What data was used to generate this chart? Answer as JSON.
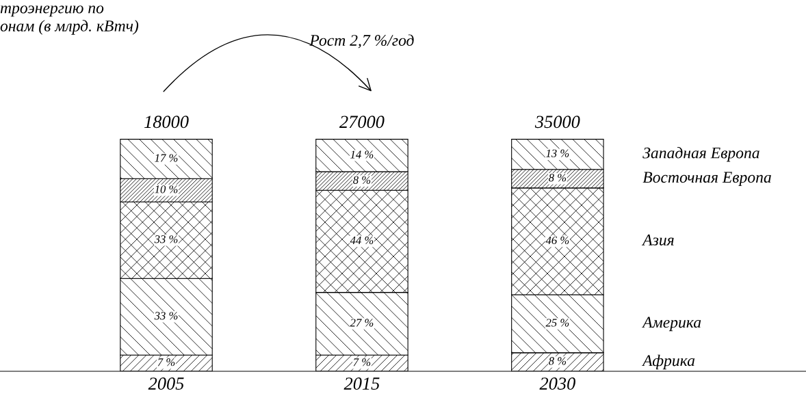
{
  "chart_data": {
    "type": "bar",
    "title": "троэнергию по\nонам (в млрд. кВтч)",
    "categories": [
      "2005",
      "2015",
      "2030"
    ],
    "stacked": true,
    "series": [
      {
        "name": "Африка",
        "color": "#000000",
        "values": [
          0.07,
          0.07,
          0.08
        ],
        "value_labels": [
          "7 %",
          "7 %",
          "8 %"
        ]
      },
      {
        "name": "Америка",
        "color": "#000000",
        "values": [
          0.33,
          0.27,
          0.25
        ],
        "value_labels": [
          "33 %",
          "27 %",
          "25 %"
        ]
      },
      {
        "name": "Азия",
        "color": "#000000",
        "values": [
          0.33,
          0.44,
          0.46
        ],
        "value_labels": [
          "33 %",
          "44 %",
          "46 %"
        ]
      },
      {
        "name": "Восточная Европа",
        "color": "#000000",
        "values": [
          0.1,
          0.08,
          0.08
        ],
        "value_labels": [
          "10 %",
          "8 %",
          "8 %"
        ]
      },
      {
        "name": "Западная Европа",
        "color": "#000000",
        "values": [
          0.17,
          0.14,
          0.13
        ],
        "value_labels": [
          "17 %",
          "14 %",
          "13 %"
        ]
      }
    ],
    "annotations": [
      "Рост 2,7 %/год",
      "18000",
      "27000",
      "35000"
    ],
    "grid": false
  }
}
